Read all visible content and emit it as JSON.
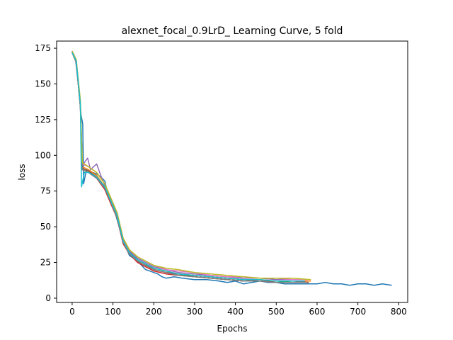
{
  "chart_data": {
    "type": "line",
    "title": "alexnet_focal_0.9LrD_ Learning Curve, 5 fold",
    "xlabel": "Epochs",
    "ylabel": "loss",
    "xlim": [
      -38,
      822
    ],
    "ylim": [
      -3,
      180
    ],
    "xticks": [
      0,
      100,
      200,
      300,
      400,
      500,
      600,
      700,
      800
    ],
    "yticks": [
      0,
      25,
      50,
      75,
      100,
      125,
      150,
      175
    ],
    "grid": false,
    "legend": "none",
    "series": [
      {
        "color": "#1f77b4",
        "points": [
          [
            0,
            173
          ],
          [
            8,
            168
          ],
          [
            15,
            150
          ],
          [
            22,
            128
          ],
          [
            26,
            122
          ],
          [
            28,
            80
          ],
          [
            35,
            90
          ],
          [
            50,
            88
          ],
          [
            60,
            87
          ],
          [
            70,
            85
          ],
          [
            80,
            82
          ],
          [
            90,
            70
          ],
          [
            100,
            65
          ],
          [
            110,
            55
          ],
          [
            120,
            45
          ],
          [
            130,
            37
          ],
          [
            140,
            30
          ],
          [
            150,
            28
          ],
          [
            160,
            26
          ],
          [
            170,
            23
          ],
          [
            180,
            20
          ],
          [
            190,
            19
          ],
          [
            200,
            18
          ],
          [
            210,
            17
          ],
          [
            220,
            15
          ],
          [
            230,
            14
          ],
          [
            250,
            15
          ],
          [
            270,
            14
          ],
          [
            300,
            13
          ],
          [
            330,
            13
          ],
          [
            360,
            12
          ],
          [
            380,
            11
          ],
          [
            400,
            12
          ],
          [
            420,
            10
          ],
          [
            440,
            11
          ],
          [
            460,
            12
          ],
          [
            480,
            11
          ],
          [
            500,
            11
          ],
          [
            520,
            10
          ],
          [
            540,
            10
          ],
          [
            560,
            10
          ],
          [
            580,
            10
          ],
          [
            600,
            10
          ],
          [
            620,
            11
          ],
          [
            640,
            10
          ],
          [
            660,
            10
          ],
          [
            680,
            9
          ],
          [
            700,
            10
          ],
          [
            720,
            10
          ],
          [
            740,
            9
          ],
          [
            760,
            10
          ],
          [
            783,
            9
          ]
        ]
      },
      {
        "color": "#ff7f0e",
        "points": [
          [
            0,
            173
          ],
          [
            10,
            165
          ],
          [
            20,
            135
          ],
          [
            25,
            92
          ],
          [
            40,
            90
          ],
          [
            60,
            86
          ],
          [
            80,
            78
          ],
          [
            95,
            68
          ],
          [
            110,
            58
          ],
          [
            125,
            40
          ],
          [
            140,
            32
          ],
          [
            160,
            27
          ],
          [
            180,
            24
          ],
          [
            200,
            21
          ],
          [
            230,
            19
          ],
          [
            260,
            17
          ],
          [
            300,
            16
          ],
          [
            340,
            15
          ],
          [
            380,
            14
          ],
          [
            420,
            13
          ],
          [
            460,
            13
          ],
          [
            500,
            12
          ],
          [
            540,
            12
          ],
          [
            585,
            12
          ]
        ]
      },
      {
        "color": "#2ca02c",
        "points": [
          [
            0,
            172
          ],
          [
            10,
            166
          ],
          [
            20,
            136
          ],
          [
            25,
            91
          ],
          [
            40,
            89
          ],
          [
            60,
            85
          ],
          [
            80,
            77
          ],
          [
            95,
            67
          ],
          [
            110,
            57
          ],
          [
            125,
            39
          ],
          [
            140,
            31
          ],
          [
            160,
            26
          ],
          [
            180,
            23
          ],
          [
            200,
            20
          ],
          [
            230,
            18
          ],
          [
            260,
            17
          ],
          [
            300,
            15
          ],
          [
            340,
            14
          ],
          [
            380,
            13
          ],
          [
            420,
            12
          ],
          [
            460,
            12
          ],
          [
            500,
            12
          ],
          [
            540,
            11
          ],
          [
            580,
            11
          ]
        ]
      },
      {
        "color": "#d62728",
        "points": [
          [
            0,
            172
          ],
          [
            10,
            165
          ],
          [
            20,
            134
          ],
          [
            25,
            90
          ],
          [
            40,
            88
          ],
          [
            60,
            84
          ],
          [
            80,
            76
          ],
          [
            95,
            66
          ],
          [
            110,
            56
          ],
          [
            125,
            38
          ],
          [
            140,
            31
          ],
          [
            160,
            25
          ],
          [
            180,
            22
          ],
          [
            200,
            19
          ],
          [
            230,
            17
          ],
          [
            260,
            16
          ],
          [
            300,
            15
          ],
          [
            340,
            14
          ],
          [
            380,
            13
          ],
          [
            420,
            12
          ],
          [
            460,
            12
          ],
          [
            500,
            11
          ],
          [
            540,
            11
          ],
          [
            580,
            11
          ]
        ]
      },
      {
        "color": "#9467bd",
        "points": [
          [
            0,
            173
          ],
          [
            10,
            166
          ],
          [
            20,
            137
          ],
          [
            25,
            93
          ],
          [
            38,
            98
          ],
          [
            45,
            90
          ],
          [
            60,
            94
          ],
          [
            70,
            86
          ],
          [
            80,
            79
          ],
          [
            95,
            69
          ],
          [
            110,
            59
          ],
          [
            125,
            41
          ],
          [
            140,
            33
          ],
          [
            160,
            28
          ],
          [
            180,
            25
          ],
          [
            200,
            22
          ],
          [
            230,
            20
          ],
          [
            260,
            18
          ],
          [
            300,
            17
          ],
          [
            340,
            16
          ],
          [
            380,
            15
          ],
          [
            420,
            14
          ],
          [
            460,
            14
          ],
          [
            500,
            13
          ],
          [
            540,
            13
          ],
          [
            580,
            13
          ]
        ]
      },
      {
        "color": "#8c564b",
        "points": [
          [
            0,
            172
          ],
          [
            10,
            165
          ],
          [
            20,
            135
          ],
          [
            25,
            91
          ],
          [
            40,
            89
          ],
          [
            60,
            85
          ],
          [
            80,
            78
          ],
          [
            95,
            68
          ],
          [
            110,
            57
          ],
          [
            125,
            40
          ],
          [
            140,
            32
          ],
          [
            160,
            27
          ],
          [
            180,
            24
          ],
          [
            200,
            20
          ],
          [
            230,
            18
          ],
          [
            260,
            17
          ],
          [
            300,
            16
          ],
          [
            340,
            15
          ],
          [
            380,
            14
          ],
          [
            420,
            13
          ],
          [
            460,
            12
          ],
          [
            500,
            12
          ],
          [
            540,
            12
          ],
          [
            580,
            11
          ]
        ]
      },
      {
        "color": "#e377c2",
        "points": [
          [
            0,
            173
          ],
          [
            10,
            167
          ],
          [
            20,
            138
          ],
          [
            25,
            94
          ],
          [
            40,
            92
          ],
          [
            60,
            88
          ],
          [
            80,
            80
          ],
          [
            95,
            70
          ],
          [
            110,
            60
          ],
          [
            125,
            42
          ],
          [
            140,
            34
          ],
          [
            160,
            29
          ],
          [
            180,
            26
          ],
          [
            200,
            23
          ],
          [
            230,
            20
          ],
          [
            260,
            19
          ],
          [
            300,
            18
          ],
          [
            340,
            16
          ],
          [
            380,
            15
          ],
          [
            420,
            15
          ],
          [
            460,
            14
          ],
          [
            500,
            14
          ],
          [
            540,
            13
          ],
          [
            580,
            13
          ]
        ]
      },
      {
        "color": "#7f7f7f",
        "points": [
          [
            0,
            172
          ],
          [
            10,
            165
          ],
          [
            20,
            135
          ],
          [
            25,
            90
          ],
          [
            40,
            88
          ],
          [
            60,
            84
          ],
          [
            80,
            77
          ],
          [
            95,
            67
          ],
          [
            110,
            56
          ],
          [
            125,
            39
          ],
          [
            140,
            31
          ],
          [
            160,
            26
          ],
          [
            180,
            23
          ],
          [
            200,
            20
          ],
          [
            230,
            18
          ],
          [
            260,
            16
          ],
          [
            300,
            15
          ],
          [
            340,
            14
          ],
          [
            380,
            13
          ],
          [
            420,
            12
          ],
          [
            460,
            12
          ],
          [
            500,
            11
          ],
          [
            540,
            11
          ],
          [
            575,
            11
          ]
        ]
      },
      {
        "color": "#bcbd22",
        "points": [
          [
            0,
            173
          ],
          [
            10,
            167
          ],
          [
            20,
            139
          ],
          [
            25,
            95
          ],
          [
            40,
            92
          ],
          [
            60,
            88
          ],
          [
            80,
            80
          ],
          [
            95,
            70
          ],
          [
            110,
            60
          ],
          [
            125,
            42
          ],
          [
            140,
            34
          ],
          [
            160,
            29
          ],
          [
            180,
            26
          ],
          [
            200,
            23
          ],
          [
            230,
            21
          ],
          [
            260,
            20
          ],
          [
            300,
            18
          ],
          [
            340,
            17
          ],
          [
            380,
            16
          ],
          [
            420,
            15
          ],
          [
            460,
            14
          ],
          [
            500,
            14
          ],
          [
            540,
            14
          ],
          [
            585,
            13
          ]
        ]
      },
      {
        "color": "#17becf",
        "points": [
          [
            0,
            172
          ],
          [
            10,
            166
          ],
          [
            20,
            136
          ],
          [
            23,
            78
          ],
          [
            30,
            88
          ],
          [
            40,
            88
          ],
          [
            60,
            85
          ],
          [
            80,
            78
          ],
          [
            95,
            68
          ],
          [
            110,
            58
          ],
          [
            125,
            40
          ],
          [
            140,
            32
          ],
          [
            160,
            27
          ],
          [
            180,
            24
          ],
          [
            200,
            21
          ],
          [
            230,
            19
          ],
          [
            260,
            17
          ],
          [
            300,
            16
          ],
          [
            340,
            15
          ],
          [
            380,
            14
          ],
          [
            420,
            13
          ],
          [
            460,
            13
          ],
          [
            500,
            12
          ],
          [
            540,
            12
          ],
          [
            570,
            12
          ]
        ]
      }
    ]
  }
}
